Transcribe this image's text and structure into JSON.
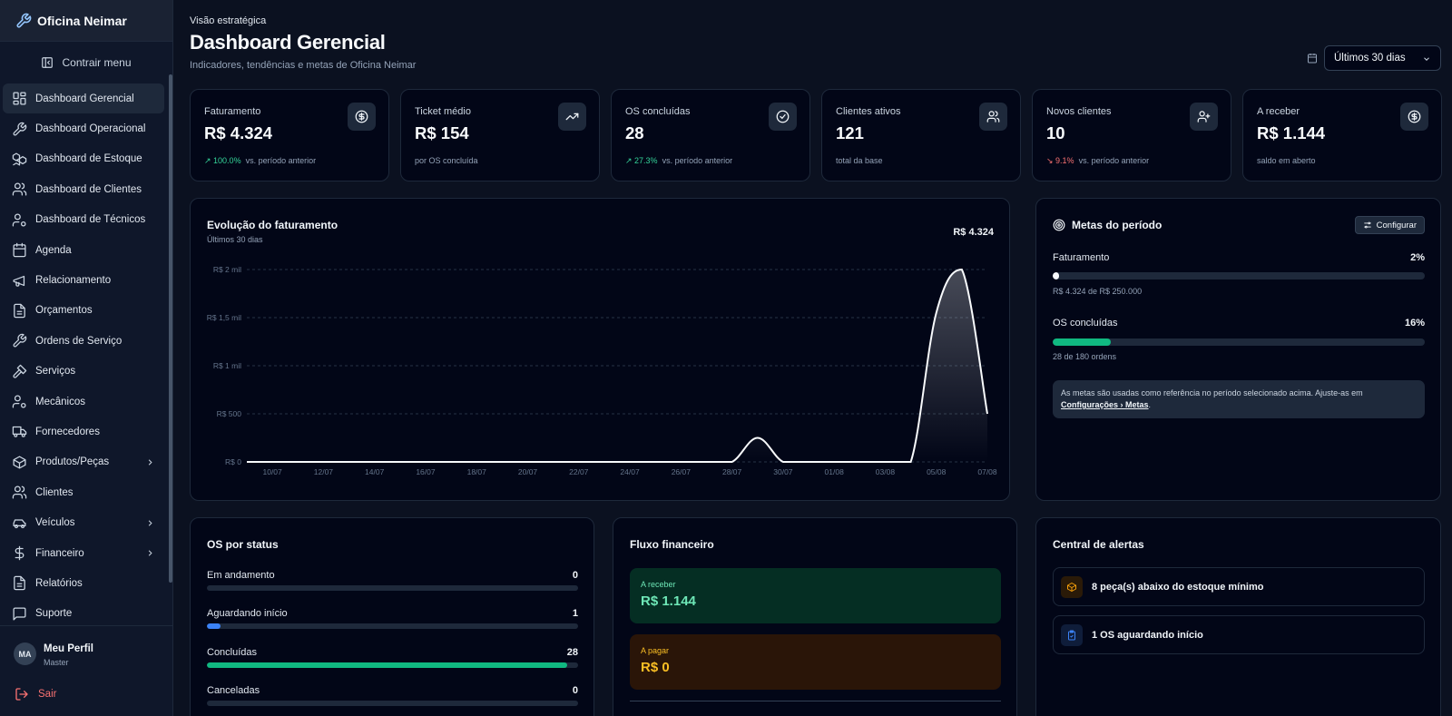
{
  "brand": {
    "name": "Oficina Neimar",
    "icon": "wrench-icon"
  },
  "sidebar": {
    "collapse_label": "Contrair menu",
    "items": [
      {
        "label": "Dashboard Gerencial",
        "icon": "layout-dashboard-icon",
        "active": true
      },
      {
        "label": "Dashboard Operacional",
        "icon": "wrench-icon"
      },
      {
        "label": "Dashboard de Estoque",
        "icon": "boxes-icon"
      },
      {
        "label": "Dashboard de Clientes",
        "icon": "users-icon"
      },
      {
        "label": "Dashboard de Técnicos",
        "icon": "user-cog-icon"
      },
      {
        "label": "Agenda",
        "icon": "calendar-icon"
      },
      {
        "label": "Relacionamento",
        "icon": "megaphone-icon"
      },
      {
        "label": "Orçamentos",
        "icon": "file-text-icon"
      },
      {
        "label": "Ordens de Serviço",
        "icon": "wrench-icon"
      },
      {
        "label": "Serviços",
        "icon": "hammer-icon"
      },
      {
        "label": "Mecânicos",
        "icon": "user-cog-icon"
      },
      {
        "label": "Fornecedores",
        "icon": "truck-icon"
      },
      {
        "label": "Produtos/Peças",
        "icon": "package-icon",
        "expandable": true
      },
      {
        "label": "Clientes",
        "icon": "users-icon"
      },
      {
        "label": "Veículos",
        "icon": "car-icon",
        "expandable": true
      },
      {
        "label": "Financeiro",
        "icon": "dollar-sign-icon",
        "expandable": true
      },
      {
        "label": "Relatórios",
        "icon": "file-text-icon"
      },
      {
        "label": "Suporte",
        "icon": "message-square-icon"
      }
    ],
    "profile": {
      "initials": "MA",
      "name": "Meu Perfil",
      "role": "Master"
    },
    "logout_label": "Sair"
  },
  "header": {
    "eyebrow": "Visão estratégica",
    "title": "Dashboard Gerencial",
    "subtitle": "Indicadores, tendências e metas de Oficina Neimar",
    "period": "Últimos 30 dias"
  },
  "kpis": [
    {
      "label": "Faturamento",
      "value": "R$ 4.324",
      "trend": "↗ 100.0%",
      "trend_dir": "up",
      "foot": "vs. período anterior",
      "icon": "dollar-circle-icon"
    },
    {
      "label": "Ticket médio",
      "value": "R$ 154",
      "trend": "",
      "trend_dir": "",
      "foot": "por OS concluída",
      "icon": "trending-up-icon"
    },
    {
      "label": "OS concluídas",
      "value": "28",
      "trend": "↗ 27.3%",
      "trend_dir": "up",
      "foot": "vs. período anterior",
      "icon": "check-circle-icon"
    },
    {
      "label": "Clientes ativos",
      "value": "121",
      "trend": "",
      "trend_dir": "",
      "foot": "total da base",
      "icon": "users-icon"
    },
    {
      "label": "Novos clientes",
      "value": "10",
      "trend": "↘ 9.1%",
      "trend_dir": "down",
      "foot": "vs. período anterior",
      "icon": "user-plus-icon"
    },
    {
      "label": "A receber",
      "value": "R$ 1.144",
      "trend": "",
      "trend_dir": "",
      "foot": "saldo em aberto",
      "icon": "dollar-circle-icon"
    }
  ],
  "revenue_chart": {
    "title": "Evolução do faturamento",
    "subtitle": "Últimos 30 dias",
    "total": "R$ 4.324"
  },
  "chart_data": {
    "type": "area",
    "title": "Evolução do faturamento",
    "subtitle": "Últimos 30 dias",
    "ylabel": "",
    "xlabel": "",
    "ylim": [
      0,
      2000
    ],
    "y_ticks": [
      "R$ 0",
      "R$ 500",
      "R$ 1 mil",
      "R$ 1,5 mil",
      "R$ 2 mil"
    ],
    "y_tick_values": [
      0,
      500,
      1000,
      1500,
      2000
    ],
    "x_ticks": [
      "10/07",
      "12/07",
      "14/07",
      "16/07",
      "18/07",
      "20/07",
      "22/07",
      "24/07",
      "26/07",
      "28/07",
      "30/07",
      "01/08",
      "03/08",
      "05/08",
      "07/08"
    ],
    "x": [
      "09/07",
      "10/07",
      "11/07",
      "12/07",
      "13/07",
      "14/07",
      "15/07",
      "16/07",
      "17/07",
      "18/07",
      "19/07",
      "20/07",
      "21/07",
      "22/07",
      "23/07",
      "24/07",
      "25/07",
      "26/07",
      "27/07",
      "28/07",
      "29/07",
      "30/07",
      "31/07",
      "01/08",
      "02/08",
      "03/08",
      "04/08",
      "05/08",
      "06/08",
      "07/08"
    ],
    "values": [
      0,
      0,
      0,
      0,
      0,
      0,
      0,
      0,
      0,
      0,
      0,
      0,
      0,
      0,
      0,
      0,
      0,
      0,
      0,
      0,
      250,
      0,
      0,
      0,
      0,
      0,
      0,
      1550,
      2000,
      500
    ],
    "grid": true,
    "color": "#f8fafc"
  },
  "goals": {
    "title": "Metas do período",
    "configure_label": "Configurar",
    "items": [
      {
        "name": "Faturamento",
        "pct_label": "2%",
        "fraction": 0.017,
        "meta": "R$ 4.324 de R$ 250.000",
        "color": "#f8fafc"
      },
      {
        "name": "OS concluídas",
        "pct_label": "16%",
        "fraction": 0.156,
        "meta": "28 de 180 ordens",
        "color": "#10b981"
      }
    ],
    "note_text": "As metas são usadas como referência no período selecionado acima. Ajuste-as em",
    "note_link": "Configurações › Metas",
    "note_end": "."
  },
  "os_status": {
    "title": "OS por status",
    "items": [
      {
        "name": "Em andamento",
        "count": "0",
        "fraction": 0,
        "color": "#3b82f6"
      },
      {
        "name": "Aguardando início",
        "count": "1",
        "fraction": 0.036,
        "color": "#3b82f6"
      },
      {
        "name": "Concluídas",
        "count": "28",
        "fraction": 0.97,
        "color": "#10b981"
      },
      {
        "name": "Canceladas",
        "count": "0",
        "fraction": 0,
        "color": "#ef4444"
      }
    ]
  },
  "cash_flow": {
    "title": "Fluxo financeiro",
    "receivable": {
      "label": "A receber",
      "value": "R$ 1.144"
    },
    "payable": {
      "label": "A pagar",
      "value": "R$ 0"
    }
  },
  "alerts": {
    "title": "Central de alertas",
    "items": [
      {
        "text": "8 peça(s) abaixo do estoque mínimo",
        "icon": "package-icon",
        "color": "#f59e0b"
      },
      {
        "text": "1 OS aguardando início",
        "icon": "clipboard-check-icon",
        "color": "#3b82f6"
      }
    ]
  }
}
